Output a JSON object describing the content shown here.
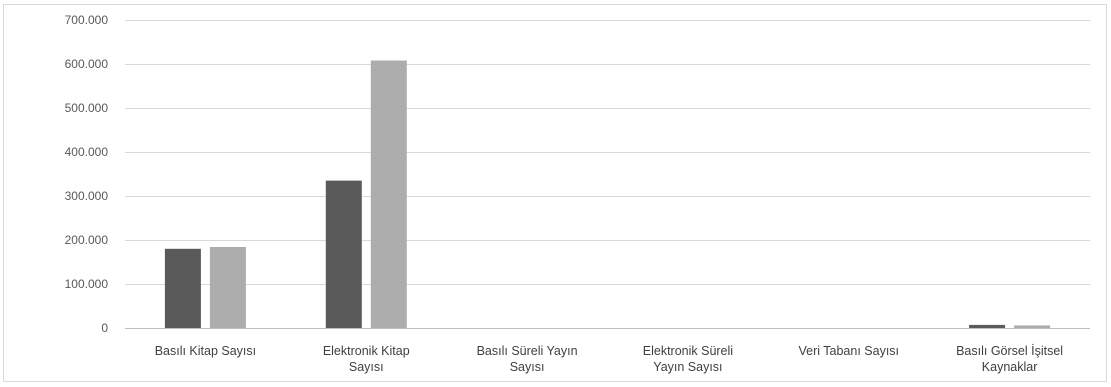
{
  "chart_data": {
    "type": "bar",
    "title": "",
    "xlabel": "",
    "ylabel": "",
    "categories": [
      [
        "Basılı Kitap Sayısı"
      ],
      [
        "Elektronik Kitap",
        "Sayısı"
      ],
      [
        "Basılı Süreli Yayın",
        "Sayısı"
      ],
      [
        "Elektronik Süreli",
        "Yayın Sayısı"
      ],
      [
        "Veri Tabanı Sayısı"
      ],
      [
        "Basılı Görsel İşitsel",
        "Kaynaklar"
      ]
    ],
    "series": [
      {
        "values": [
          180000,
          335000,
          0,
          0,
          0,
          7000
        ],
        "color": "#5a5a5a"
      },
      {
        "values": [
          184000,
          608000,
          0,
          0,
          0,
          6000
        ],
        "color": "#adadad"
      }
    ],
    "ylim": [
      0,
      700000
    ],
    "yticks": [
      0,
      100000,
      200000,
      300000,
      400000,
      500000,
      600000,
      700000
    ],
    "ytick_labels": [
      "0",
      "100.000",
      "200.000",
      "300.000",
      "400.000",
      "500.000",
      "600.000",
      "700.000"
    ],
    "grid": true,
    "legend": "none"
  }
}
